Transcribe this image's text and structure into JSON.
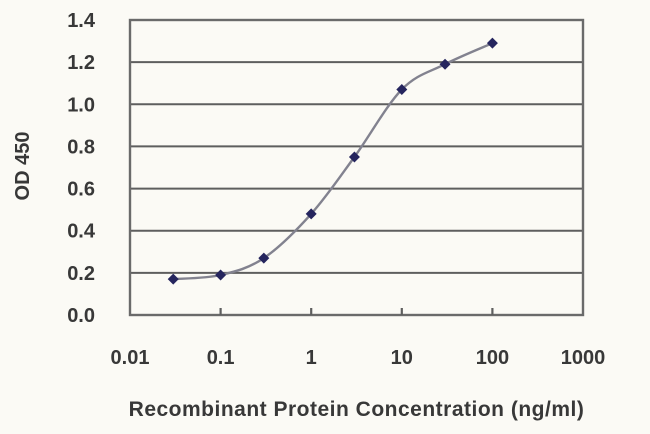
{
  "figure": {
    "background": "#fbfaf5"
  },
  "chart_data": {
    "type": "line",
    "title": "",
    "xlabel": "Recombinant Protein Concentration (ng/ml)",
    "ylabel": "OD 450",
    "x_scale": "log",
    "y_scale": "linear",
    "xlim": [
      0.01,
      1000
    ],
    "ylim": [
      0.0,
      1.4
    ],
    "grid": "horizontal",
    "legend": "none",
    "marker": "diamond",
    "x": [
      0.03,
      0.1,
      0.3,
      1,
      3,
      10,
      30,
      100
    ],
    "y": [
      0.17,
      0.19,
      0.27,
      0.48,
      0.75,
      1.07,
      1.19,
      1.29
    ],
    "x_ticks": [
      0.01,
      0.1,
      1,
      10,
      100,
      1000
    ],
    "x_tick_labels": [
      "0.01",
      "0.1",
      "1",
      "10",
      "100",
      "1000"
    ],
    "y_ticks": [
      0.0,
      0.2,
      0.4,
      0.6,
      0.8,
      1.0,
      1.2,
      1.4
    ],
    "y_tick_labels": [
      "0.0",
      "0.2",
      "0.4",
      "0.6",
      "0.8",
      "1.0",
      "1.2",
      "1.4"
    ],
    "colors": {
      "line": "#82828f",
      "marker": "#25255e",
      "grid": "#5e5e5e",
      "frame": "#6a6a6a",
      "text": "#383838",
      "background": "#fbfaf5"
    }
  }
}
